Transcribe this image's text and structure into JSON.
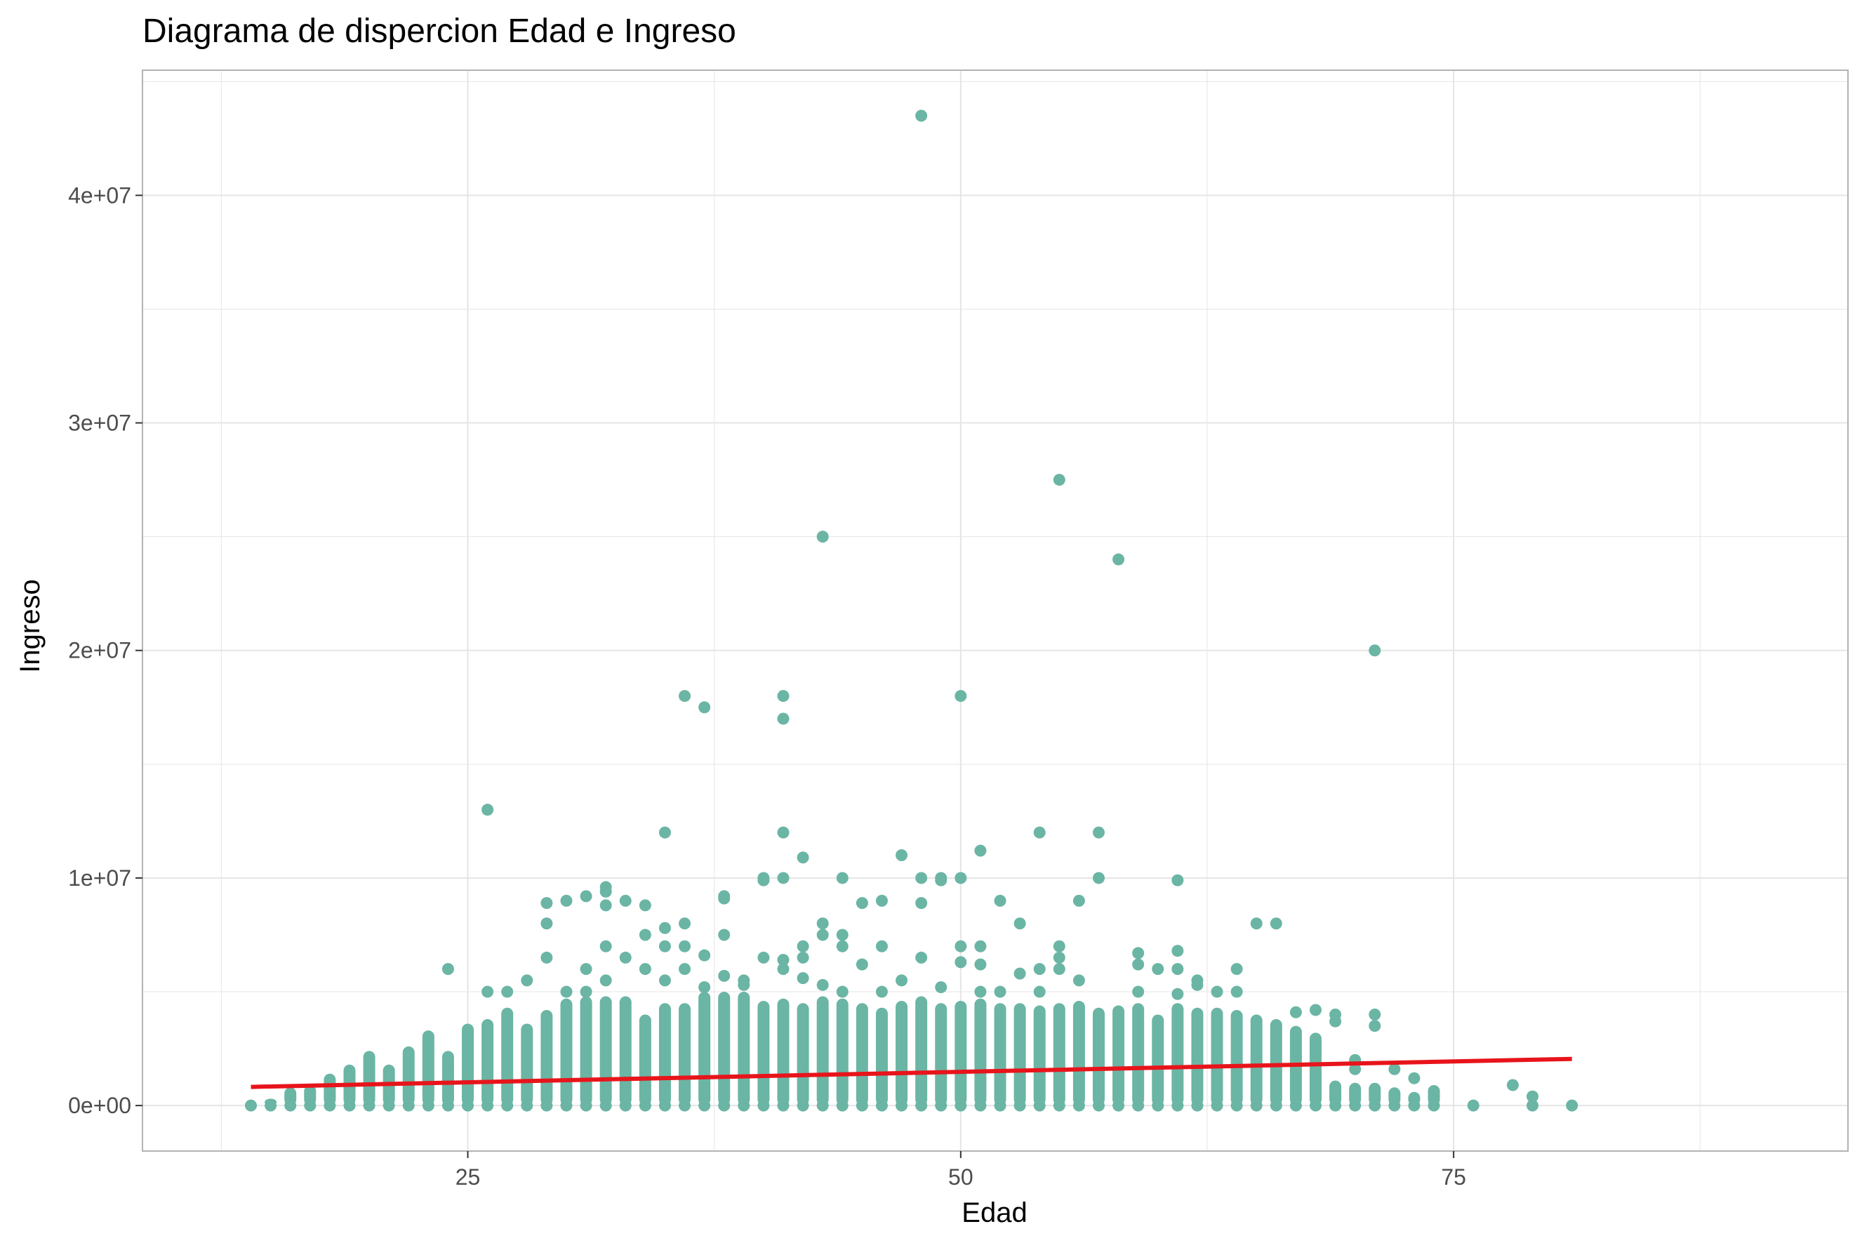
{
  "chart_data": {
    "type": "scatter",
    "title": "Diagrama de dispercion Edad e Ingreso",
    "xlabel": "Edad",
    "ylabel": "Ingreso",
    "xlim": [
      8.5,
      95
    ],
    "ylim": [
      -2000000,
      45500000
    ],
    "x_ticks": [
      {
        "value": 25,
        "label": "25"
      },
      {
        "value": 50,
        "label": "50"
      },
      {
        "value": 75,
        "label": "75"
      }
    ],
    "y_ticks": [
      {
        "value": 0,
        "label": "0e+00"
      },
      {
        "value": 10000000,
        "label": "1e+07"
      },
      {
        "value": 20000000,
        "label": "2e+07"
      },
      {
        "value": 30000000,
        "label": "3e+07"
      },
      {
        "value": 40000000,
        "label": "4e+07"
      }
    ],
    "grid": true,
    "colors": {
      "points": "#6bb5a4",
      "trend_line": "#e8141b",
      "grid": "#e5e5e5",
      "panel_border": "#b3b3b3"
    },
    "column_max_by_age": [
      [
        14,
        100000
      ],
      [
        15,
        300000
      ],
      [
        16,
        800000
      ],
      [
        17,
        900000
      ],
      [
        18,
        1400000
      ],
      [
        19,
        1800000
      ],
      [
        20,
        2400000
      ],
      [
        21,
        1800000
      ],
      [
        22,
        2600000
      ],
      [
        23,
        3300000
      ],
      [
        24,
        2400000
      ],
      [
        25,
        3600000
      ],
      [
        26,
        3800000
      ],
      [
        27,
        4300000
      ],
      [
        28,
        3600000
      ],
      [
        29,
        4200000
      ],
      [
        30,
        4700000
      ],
      [
        31,
        4800000
      ],
      [
        32,
        4800000
      ],
      [
        33,
        4800000
      ],
      [
        34,
        4000000
      ],
      [
        35,
        4500000
      ],
      [
        36,
        4500000
      ],
      [
        37,
        5000000
      ],
      [
        38,
        5000000
      ],
      [
        39,
        5000000
      ],
      [
        40,
        4600000
      ],
      [
        41,
        4700000
      ],
      [
        42,
        4500000
      ],
      [
        43,
        4800000
      ],
      [
        44,
        4700000
      ],
      [
        45,
        4500000
      ],
      [
        46,
        4300000
      ],
      [
        47,
        4600000
      ],
      [
        48,
        4800000
      ],
      [
        49,
        4500000
      ],
      [
        50,
        4600000
      ],
      [
        51,
        4700000
      ],
      [
        52,
        4500000
      ],
      [
        53,
        4500000
      ],
      [
        54,
        4400000
      ],
      [
        55,
        4500000
      ],
      [
        56,
        4600000
      ],
      [
        57,
        4300000
      ],
      [
        58,
        4400000
      ],
      [
        59,
        4500000
      ],
      [
        60,
        4000000
      ],
      [
        61,
        4500000
      ],
      [
        62,
        4300000
      ],
      [
        63,
        4300000
      ],
      [
        64,
        4200000
      ],
      [
        65,
        4000000
      ],
      [
        66,
        3800000
      ],
      [
        67,
        3500000
      ],
      [
        68,
        3200000
      ],
      [
        69,
        1100000
      ],
      [
        70,
        1000000
      ],
      [
        71,
        1000000
      ],
      [
        72,
        800000
      ],
      [
        73,
        600000
      ],
      [
        74,
        900000
      ]
    ],
    "points": [
      [
        48,
        43500000
      ],
      [
        55,
        27500000
      ],
      [
        43,
        25000000
      ],
      [
        58,
        24000000
      ],
      [
        71,
        20000000
      ],
      [
        36,
        18000000
      ],
      [
        41,
        18000000
      ],
      [
        50,
        18000000
      ],
      [
        37,
        17500000
      ],
      [
        41,
        17000000
      ],
      [
        26,
        13000000
      ],
      [
        35,
        12000000
      ],
      [
        41,
        12000000
      ],
      [
        54,
        12000000
      ],
      [
        57,
        12000000
      ],
      [
        51,
        11200000
      ],
      [
        47,
        11000000
      ],
      [
        42,
        10900000
      ],
      [
        40,
        10000000
      ],
      [
        40,
        9900000
      ],
      [
        41,
        10000000
      ],
      [
        44,
        10000000
      ],
      [
        48,
        10000000
      ],
      [
        49,
        10000000
      ],
      [
        49,
        9900000
      ],
      [
        50,
        10000000
      ],
      [
        57,
        10000000
      ],
      [
        61,
        9900000
      ],
      [
        32,
        9600000
      ],
      [
        32,
        9400000
      ],
      [
        38,
        9200000
      ],
      [
        38,
        9100000
      ],
      [
        31,
        9200000
      ],
      [
        30,
        9000000
      ],
      [
        33,
        9000000
      ],
      [
        29,
        8900000
      ],
      [
        34,
        8800000
      ],
      [
        32,
        8800000
      ],
      [
        45,
        8900000
      ],
      [
        46,
        9000000
      ],
      [
        48,
        8900000
      ],
      [
        52,
        9000000
      ],
      [
        56,
        9000000
      ],
      [
        29,
        8000000
      ],
      [
        36,
        8000000
      ],
      [
        43,
        8000000
      ],
      [
        53,
        8000000
      ],
      [
        65,
        8000000
      ],
      [
        66,
        8000000
      ],
      [
        35,
        7800000
      ],
      [
        34,
        7500000
      ],
      [
        38,
        7500000
      ],
      [
        43,
        7500000
      ],
      [
        44,
        7500000
      ],
      [
        32,
        7000000
      ],
      [
        35,
        7000000
      ],
      [
        36,
        7000000
      ],
      [
        42,
        7000000
      ],
      [
        44,
        7000000
      ],
      [
        46,
        7000000
      ],
      [
        50,
        7000000
      ],
      [
        51,
        7000000
      ],
      [
        55,
        7000000
      ],
      [
        59,
        6700000
      ],
      [
        61,
        6800000
      ],
      [
        37,
        6600000
      ],
      [
        24,
        6000000
      ],
      [
        29,
        6500000
      ],
      [
        31,
        6000000
      ],
      [
        33,
        6500000
      ],
      [
        40,
        6500000
      ],
      [
        41,
        6400000
      ],
      [
        42,
        6500000
      ],
      [
        48,
        6500000
      ],
      [
        50,
        6300000
      ],
      [
        51,
        6200000
      ],
      [
        55,
        6500000
      ],
      [
        55,
        6000000
      ],
      [
        59,
        6200000
      ],
      [
        60,
        6000000
      ],
      [
        61,
        6000000
      ],
      [
        64,
        6000000
      ],
      [
        34,
        6000000
      ],
      [
        36,
        6000000
      ],
      [
        41,
        6000000
      ],
      [
        45,
        6200000
      ],
      [
        54,
        6000000
      ],
      [
        28,
        5500000
      ],
      [
        32,
        5500000
      ],
      [
        35,
        5500000
      ],
      [
        38,
        5700000
      ],
      [
        39,
        5500000
      ],
      [
        42,
        5600000
      ],
      [
        47,
        5500000
      ],
      [
        53,
        5800000
      ],
      [
        56,
        5500000
      ],
      [
        62,
        5500000
      ],
      [
        62,
        5300000
      ],
      [
        39,
        5300000
      ],
      [
        43,
        5300000
      ],
      [
        26,
        5000000
      ],
      [
        27,
        5000000
      ],
      [
        30,
        5000000
      ],
      [
        31,
        5000000
      ],
      [
        37,
        5200000
      ],
      [
        44,
        5000000
      ],
      [
        46,
        5000000
      ],
      [
        49,
        5200000
      ],
      [
        51,
        5000000
      ],
      [
        52,
        5000000
      ],
      [
        54,
        5000000
      ],
      [
        59,
        5000000
      ],
      [
        61,
        4900000
      ],
      [
        63,
        5000000
      ],
      [
        64,
        5000000
      ],
      [
        67,
        4100000
      ],
      [
        68,
        4200000
      ],
      [
        69,
        4000000
      ],
      [
        71,
        4000000
      ],
      [
        69,
        3700000
      ],
      [
        71,
        3500000
      ],
      [
        70,
        2000000
      ],
      [
        70,
        1600000
      ],
      [
        72,
        1600000
      ],
      [
        73,
        1200000
      ],
      [
        76,
        0
      ],
      [
        78,
        900000
      ],
      [
        79,
        400000
      ],
      [
        79,
        0
      ],
      [
        81,
        0
      ]
    ],
    "trend_line": {
      "x": [
        14,
        81
      ],
      "y": [
        820000,
        2050000
      ]
    }
  }
}
